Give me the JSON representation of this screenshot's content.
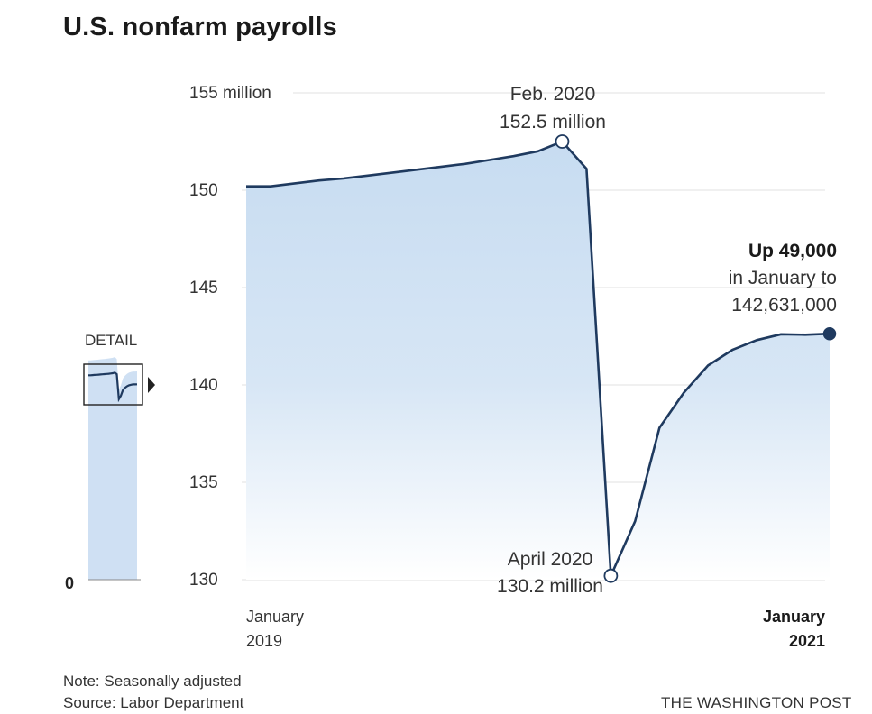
{
  "title": "U.S. nonfarm payrolls",
  "footer": {
    "note": "Note: Seasonally adjusted",
    "source": "Source: Labor Department",
    "credit": "THE WASHINGTON POST"
  },
  "detail": {
    "label": "DETAIL",
    "zero_label": "0"
  },
  "chart_data": {
    "type": "area",
    "title": "U.S. nonfarm payrolls",
    "unit": "million",
    "ylim": [
      130,
      155
    ],
    "y_ticks": [
      {
        "value": 155,
        "label": "155 million"
      },
      {
        "value": 150,
        "label": "150"
      },
      {
        "value": 145,
        "label": "145"
      },
      {
        "value": 140,
        "label": "140"
      },
      {
        "value": 135,
        "label": "135"
      },
      {
        "value": 130,
        "label": "130"
      }
    ],
    "x_labels": [
      {
        "line1": "January",
        "line2": "2019",
        "bold": false
      },
      {
        "line1": "January",
        "line2": "2021",
        "bold": true
      }
    ],
    "grid": true,
    "series": [
      {
        "x": [
          "2019-01",
          "2019-02",
          "2019-03",
          "2019-04",
          "2019-05",
          "2019-06",
          "2019-07",
          "2019-08",
          "2019-09",
          "2019-10",
          "2019-11",
          "2019-12",
          "2020-01",
          "2020-02",
          "2020-03",
          "2020-04",
          "2020-05",
          "2020-06",
          "2020-07",
          "2020-08",
          "2020-09",
          "2020-10",
          "2020-11",
          "2020-12",
          "2021-01"
        ],
        "values": [
          150.2,
          150.2,
          150.35,
          150.5,
          150.6,
          150.75,
          150.9,
          151.05,
          151.2,
          151.35,
          151.55,
          151.75,
          152.0,
          152.5,
          151.1,
          130.2,
          133.0,
          137.8,
          139.6,
          141.0,
          141.8,
          142.3,
          142.6,
          142.58,
          142.63
        ]
      }
    ],
    "annotations": [
      {
        "lines": [
          "Feb. 2020",
          "152.5 million"
        ],
        "bold_first": false,
        "point_index": 13,
        "marker": "hollow"
      },
      {
        "lines": [
          "April 2020",
          "130.2 million"
        ],
        "bold_first": false,
        "point_index": 15,
        "marker": "hollow"
      },
      {
        "lines": [
          "Up 49,000",
          "in January to",
          "142,631,000"
        ],
        "bold_first": true,
        "point_index": 24,
        "marker": "filled"
      }
    ]
  },
  "colors": {
    "line": "#1f3a5f",
    "area_top": "#c7dcf1",
    "area_bottom": "#ffffff",
    "grid": "#e2e2e2",
    "detail_fill": "#cfe0f3"
  }
}
